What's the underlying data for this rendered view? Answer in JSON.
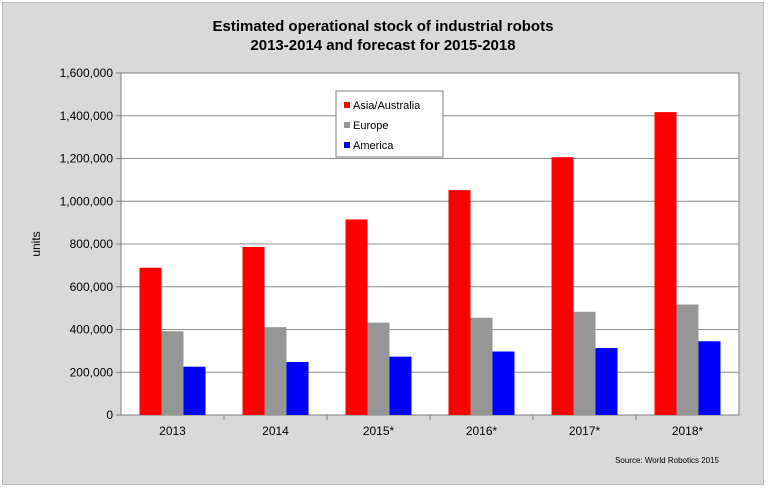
{
  "chart_data": {
    "type": "bar",
    "title": "Estimated operational stock of industrial robots",
    "subtitle": "2013-2014 and forecast for 2015-2018",
    "xlabel": "",
    "ylabel": "units",
    "categories": [
      "2013",
      "2014",
      "2015*",
      "2016*",
      "2017*",
      "2018*"
    ],
    "ylim": [
      0,
      1600000
    ],
    "yticks": [
      0,
      200000,
      400000,
      600000,
      800000,
      1000000,
      1200000,
      1400000,
      1600000
    ],
    "ytick_labels": [
      "0",
      "200,000",
      "400,000",
      "600,000",
      "800,000",
      "1,000,000",
      "1,200,000",
      "1,400,000",
      "1,600,000"
    ],
    "grid": true,
    "legend_position": "top-center",
    "series": [
      {
        "name": "Asia/Australia",
        "color": "#ff0000",
        "values": [
          689000,
          786000,
          915000,
          1052000,
          1206000,
          1417000
        ]
      },
      {
        "name": "Europe",
        "color": "#969696",
        "values": [
          392000,
          411000,
          432000,
          455000,
          483000,
          517000
        ]
      },
      {
        "name": "America",
        "color": "#0000ff",
        "values": [
          226000,
          248000,
          273000,
          297000,
          313000,
          345000
        ]
      }
    ],
    "source": "Source: World Robotics 2015"
  }
}
